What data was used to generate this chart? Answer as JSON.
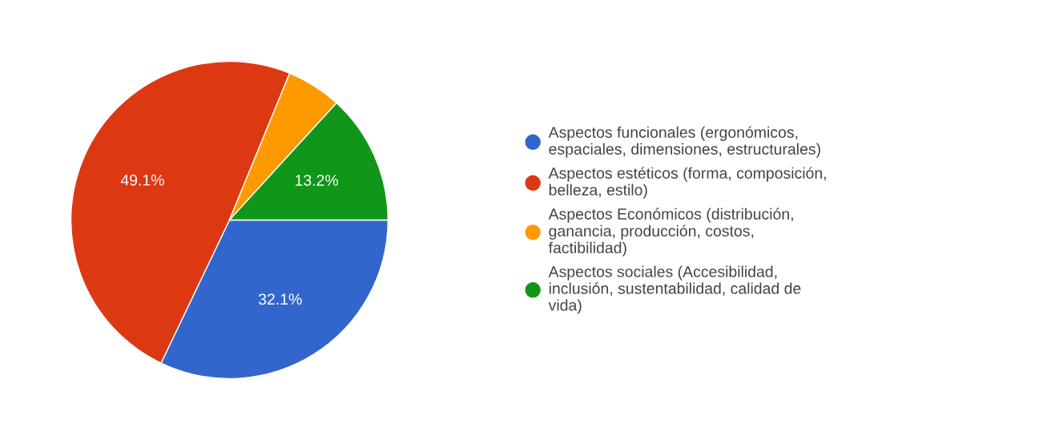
{
  "chart_data": {
    "type": "pie",
    "categories": [
      "Aspectos funcionales (ergonómicos,\nespaciales, dimensiones, estructurales)",
      "Aspectos estéticos (forma, composición,\nbelleza, estilo)",
      "Aspectos Económicos (distribución,\nganancia, producción, costos,\nfactibilidad)",
      "Aspectos sociales (Accesibilidad,\ninclusión, sustentabilidad, calidad de\nvida)"
    ],
    "values": [
      32.1,
      49.1,
      5.6,
      13.2
    ],
    "colors": [
      "#3366cc",
      "#dc3912",
      "#ff9900",
      "#109618"
    ],
    "value_labels": [
      "32.1%",
      "49.1%",
      null,
      "13.2%"
    ],
    "legend": "right"
  }
}
